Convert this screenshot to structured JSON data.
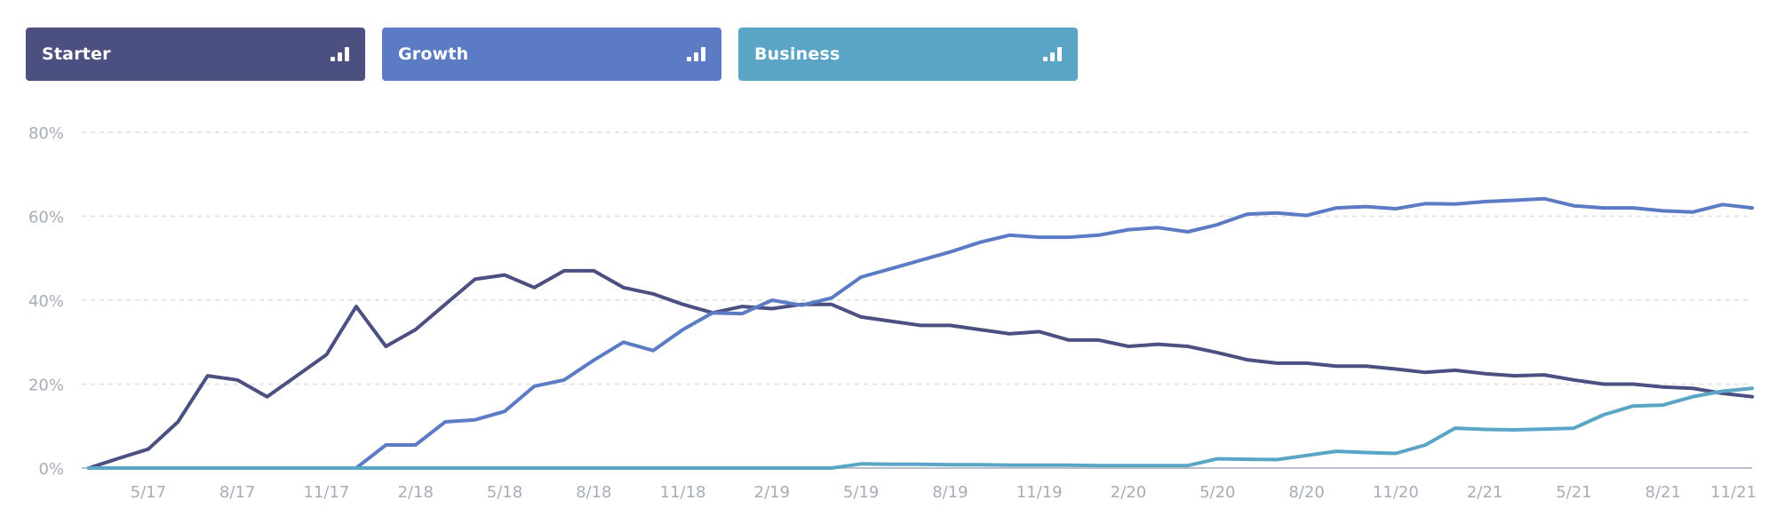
{
  "legend": [
    {
      "name": "Starter",
      "color": "#4b5080",
      "icon": "bar-chart-icon"
    },
    {
      "name": "Growth",
      "color": "#5b7cc4",
      "icon": "bar-chart-icon"
    },
    {
      "name": "Business",
      "color": "#5aa5c5",
      "icon": "bar-chart-icon"
    }
  ],
  "chart_data": {
    "type": "line",
    "title": "",
    "xlabel": "",
    "ylabel": "",
    "ylim": [
      0,
      80
    ],
    "grid": true,
    "y_ticks": [
      "0%",
      "20%",
      "40%",
      "60%",
      "80%"
    ],
    "x_ticks": [
      "5/17",
      "8/17",
      "11/17",
      "2/18",
      "5/18",
      "8/18",
      "11/18",
      "2/19",
      "5/19",
      "8/19",
      "11/19",
      "2/20",
      "5/20",
      "8/20",
      "11/20",
      "2/21",
      "5/21",
      "8/21",
      "11/21"
    ],
    "x_ticks_index": [
      2,
      5,
      8,
      11,
      14,
      17,
      20,
      23,
      26,
      29,
      32,
      35,
      38,
      41,
      44,
      47,
      50,
      53,
      56
    ],
    "x": [
      "3/17",
      "4/17",
      "5/17",
      "6/17",
      "7/17",
      "8/17",
      "9/17",
      "10/17",
      "11/17",
      "12/17",
      "1/18",
      "2/18",
      "3/18",
      "4/18",
      "5/18",
      "6/18",
      "7/18",
      "8/18",
      "9/18",
      "10/18",
      "11/18",
      "12/18",
      "1/19",
      "2/19",
      "3/19",
      "4/19",
      "5/19",
      "6/19",
      "7/19",
      "8/19",
      "9/19",
      "10/19",
      "11/19",
      "12/19",
      "1/20",
      "2/20",
      "3/20",
      "4/20",
      "5/20",
      "6/20",
      "7/20",
      "8/20",
      "9/20",
      "10/20",
      "11/20",
      "12/20",
      "1/21",
      "2/21",
      "3/21",
      "4/21",
      "5/21",
      "6/21",
      "7/21",
      "8/21",
      "9/21",
      "10/21",
      "11/21"
    ],
    "series": [
      {
        "name": "Starter",
        "color": "#4b5080",
        "values": [
          0,
          2.3,
          4.5,
          11,
          22,
          21,
          17,
          22,
          27,
          38.5,
          29,
          33,
          39,
          45,
          46,
          43,
          47,
          47,
          43,
          41.5,
          39,
          37,
          38.5,
          38,
          39,
          39,
          36,
          35,
          34,
          34,
          33,
          32,
          32.5,
          30.5,
          30.5,
          29,
          29.5,
          29,
          27.5,
          25.8,
          25,
          25,
          24.3,
          24.3,
          23.6,
          22.8,
          23.3,
          22.5,
          22,
          22.2,
          21,
          20,
          20,
          19.3,
          19,
          17.8,
          17
        ]
      },
      {
        "name": "Growth",
        "color": "#5b7cc4",
        "values": [
          0,
          0,
          0,
          0,
          0,
          0,
          0,
          0,
          0,
          0,
          5.5,
          5.5,
          11,
          11.5,
          13.5,
          19.5,
          21,
          25.7,
          30,
          28,
          33,
          37,
          36.8,
          40,
          38.8,
          40.5,
          45.5,
          47.5,
          49.5,
          51.5,
          53.8,
          55.5,
          55,
          55,
          55.5,
          56.8,
          57.3,
          56.3,
          58,
          60.5,
          60.8,
          60.2,
          62,
          62.3,
          61.8,
          63,
          62.9,
          63.5,
          63.8,
          64.2,
          62.5,
          62,
          62,
          61.3,
          61,
          62.8,
          62
        ]
      },
      {
        "name": "Business",
        "color": "#5aa5c5",
        "values": [
          0,
          0,
          0,
          0,
          0,
          0,
          0,
          0,
          0,
          0,
          0,
          0,
          0,
          0,
          0,
          0,
          0,
          0,
          0,
          0,
          0,
          0,
          0,
          0,
          0,
          0,
          1,
          0.9,
          0.9,
          0.8,
          0.8,
          0.7,
          0.7,
          0.7,
          0.6,
          0.6,
          0.6,
          0.6,
          2.2,
          2.1,
          2,
          3,
          4,
          3.7,
          3.5,
          5.5,
          9.5,
          9.2,
          9.1,
          9.3,
          9.5,
          12.7,
          14.8,
          15,
          17,
          18.3,
          19
        ]
      }
    ]
  }
}
